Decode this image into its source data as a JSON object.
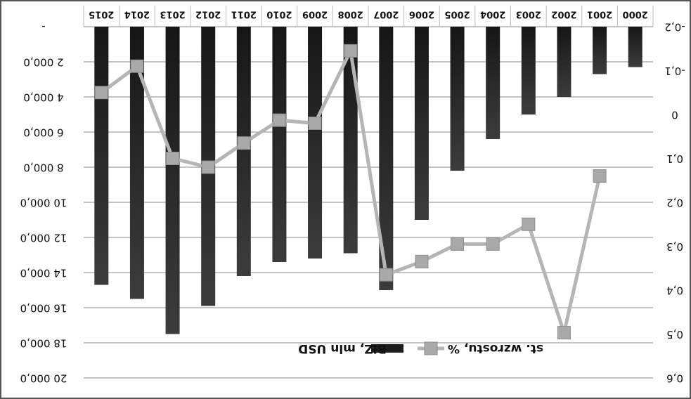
{
  "chart_data": {
    "type": "bar",
    "render_note_ignore": "",
    "categories": [
      "2000",
      "2001",
      "2002",
      "2003",
      "2004",
      "2005",
      "2006",
      "2007",
      "2008",
      "2009",
      "2010",
      "2011",
      "2012",
      "2013",
      "2014",
      "2015"
    ],
    "series": [
      {
        "name": "BIZ, mln USD",
        "type": "bar",
        "axis": "left",
        "color": "#2b2b2b",
        "values": [
          2300,
          2700,
          4000,
          5000,
          6400,
          8200,
          11000,
          15000,
          12900,
          13200,
          13400,
          14200,
          15900,
          17500,
          15500,
          14700
        ]
      },
      {
        "name": "st. wzrostu, %",
        "type": "line",
        "axis": "right",
        "color": "#b3b3b3",
        "values": [
          null,
          0.14,
          0.497,
          0.25,
          0.295,
          0.295,
          0.335,
          0.365,
          -0.145,
          0.02,
          0.013,
          0.065,
          0.12,
          0.1,
          -0.11,
          -0.05
        ]
      }
    ],
    "y_left": {
      "min": 0,
      "max": 20000,
      "ticks": [
        {
          "value": 0,
          "label": "-"
        },
        {
          "value": 2000,
          "label": "2 000,0"
        },
        {
          "value": 4000,
          "label": "4 000,0"
        },
        {
          "value": 6000,
          "label": "6 000,0"
        },
        {
          "value": 8000,
          "label": "8 000,0"
        },
        {
          "value": 10000,
          "label": "10 000,0"
        },
        {
          "value": 12000,
          "label": "12 000,0"
        },
        {
          "value": 14000,
          "label": "14 000,0"
        },
        {
          "value": 16000,
          "label": "16 000,0"
        },
        {
          "value": 18000,
          "label": "18 000,0"
        },
        {
          "value": 20000,
          "label": "20 000,0"
        }
      ]
    },
    "y_right": {
      "min": -0.2,
      "max": 0.6,
      "ticks": [
        {
          "value": -0.2,
          "label": "-0,2"
        },
        {
          "value": -0.1,
          "label": "-0,1"
        },
        {
          "value": 0,
          "label": "0"
        },
        {
          "value": 0.1,
          "label": "0,1"
        },
        {
          "value": 0.2,
          "label": "0,2"
        },
        {
          "value": 0.3,
          "label": "0,3"
        },
        {
          "value": 0.4,
          "label": "0,4"
        },
        {
          "value": 0.5,
          "label": "0,5"
        },
        {
          "value": 0.6,
          "label": "0,6"
        }
      ]
    },
    "orientation": "rotated 180 degrees",
    "grid": true,
    "legend_position": "bottom-center"
  }
}
